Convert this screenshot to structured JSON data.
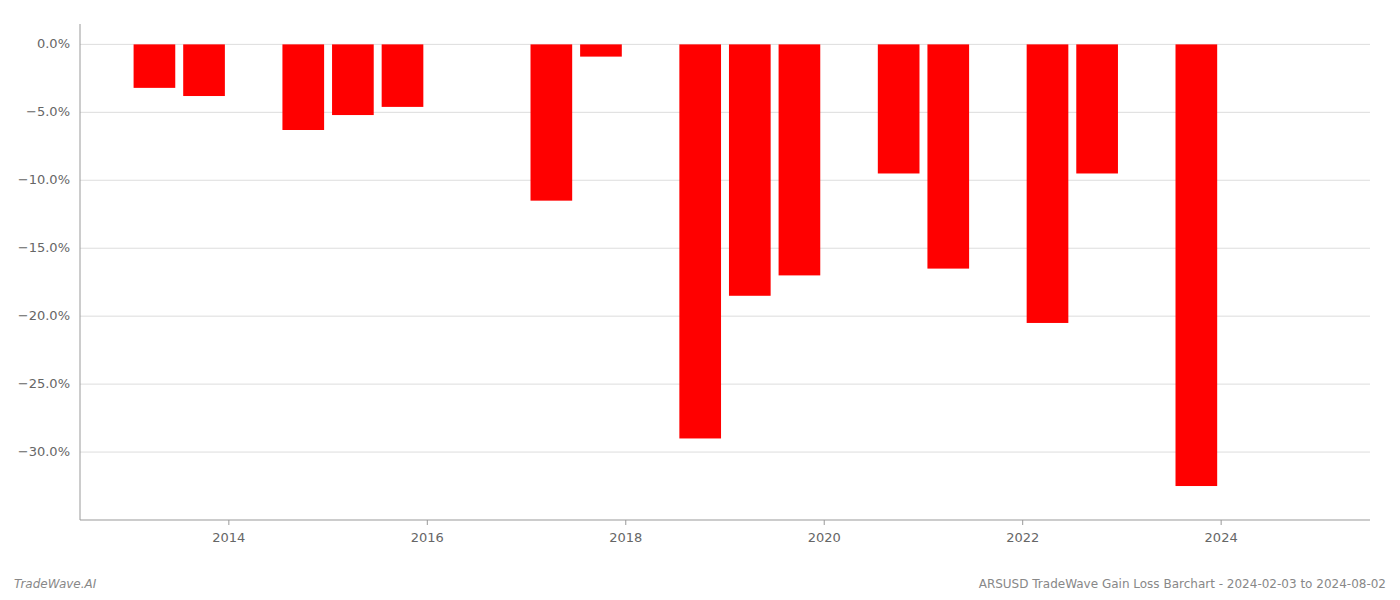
{
  "chart_data": {
    "type": "bar",
    "x": [
      2013.25,
      2013.75,
      2014.75,
      2015.25,
      2015.75,
      2017.25,
      2017.75,
      2018.75,
      2019.25,
      2019.75,
      2020.75,
      2021.25,
      2022.25,
      2022.75,
      2023.75
    ],
    "values": [
      -3.2,
      -3.8,
      -6.3,
      -5.2,
      -4.6,
      -11.5,
      -0.9,
      -29.0,
      -18.5,
      -17.0,
      -9.5,
      -16.5,
      -20.5,
      -9.5,
      -32.5
    ],
    "color": "#ff0000",
    "xlim": [
      2012.5,
      2025.5
    ],
    "xticks": [
      2014,
      2016,
      2018,
      2020,
      2022,
      2024
    ],
    "ylim": [
      -35,
      1.5
    ],
    "yticks": [
      {
        "value": 0.0,
        "label": "0.0%"
      },
      {
        "value": -5.0,
        "label": "−5.0%"
      },
      {
        "value": -10.0,
        "label": "−10.0%"
      },
      {
        "value": -15.0,
        "label": "−15.0%"
      },
      {
        "value": -20.0,
        "label": "−20.0%"
      },
      {
        "value": -25.0,
        "label": "−25.0%"
      },
      {
        "value": -30.0,
        "label": "−30.0%"
      }
    ],
    "grid": true,
    "annotations": [
      "TradeWave.AI",
      "ARSUSD TradeWave Gain Loss Barchart - 2024-02-03 to 2024-08-02"
    ]
  }
}
